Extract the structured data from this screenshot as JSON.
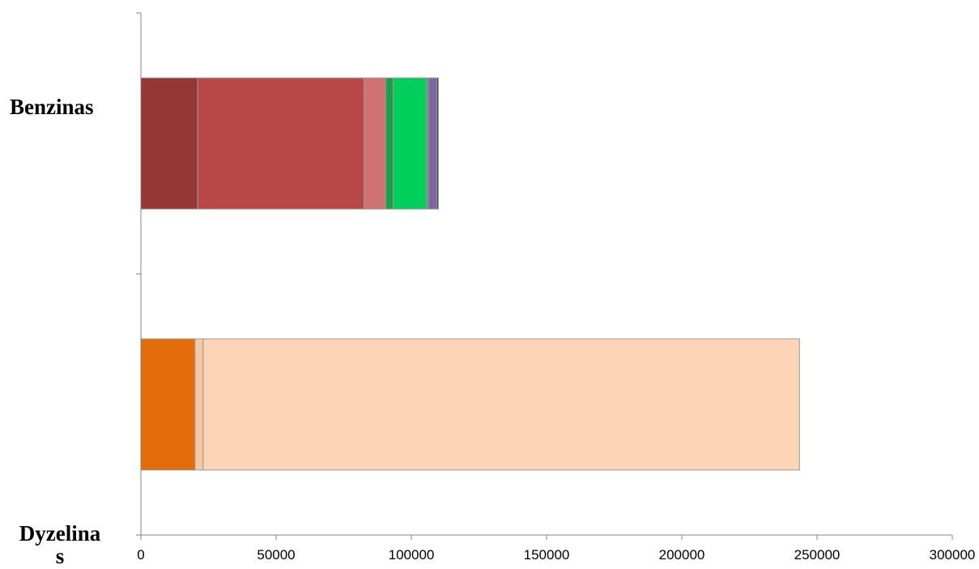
{
  "chart_data": {
    "type": "bar",
    "orientation": "horizontal",
    "stacked": true,
    "title": "",
    "xlabel": "",
    "ylabel": "",
    "xlim": [
      0,
      300000
    ],
    "x_ticks": [
      0,
      50000,
      100000,
      150000,
      200000,
      250000,
      300000
    ],
    "x_tick_labels": [
      "0",
      "50000",
      "100000",
      "150000",
      "200000",
      "250000",
      "300000"
    ],
    "categories": [
      "Benzinas",
      "Dyzelina\ns"
    ],
    "category_labels": {
      "benzinas": "Benzinas",
      "dyzelinas_line1": "Dyzelina",
      "dyzelinas_line2": "s"
    },
    "grid": false,
    "legend": "none",
    "bars": [
      {
        "category": "Benzinas",
        "segments": [
          {
            "value": 21000,
            "color": "#953735"
          },
          {
            "value": 61500,
            "color": "#BA4747"
          },
          {
            "value": 8000,
            "color": "#D07271"
          },
          {
            "value": 2800,
            "color": "#1E9E48"
          },
          {
            "value": 12200,
            "color": "#00D05A"
          },
          {
            "value": 800,
            "color": "#3DA667"
          },
          {
            "value": 3200,
            "color": "#8064A2"
          },
          {
            "value": 500,
            "color": "#1A1A3A"
          }
        ]
      },
      {
        "category": "Dyzelinas",
        "segments": [
          {
            "value": 20000,
            "color": "#E46C0A"
          },
          {
            "value": 3000,
            "color": "#F9C7A0"
          },
          {
            "value": 220500,
            "color": "#FBD5B5"
          }
        ]
      }
    ]
  }
}
